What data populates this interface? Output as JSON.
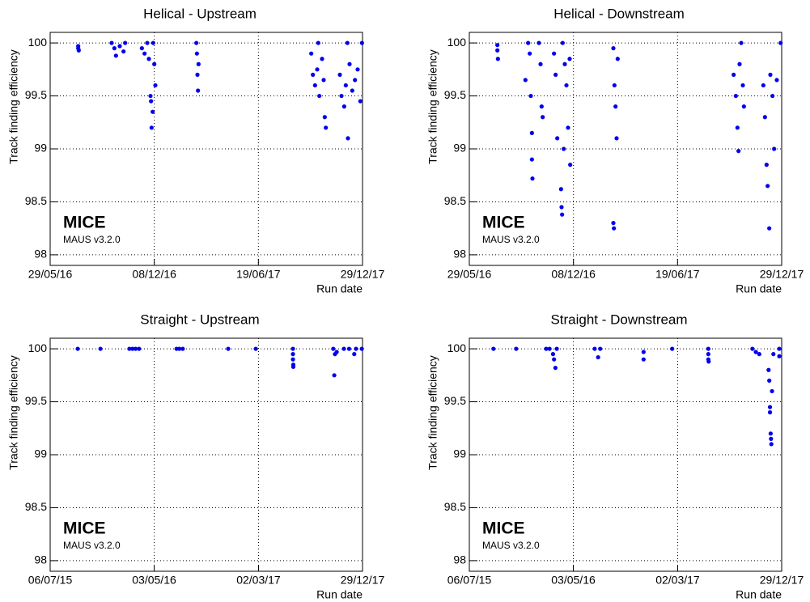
{
  "chart_data": [
    {
      "type": "scatter",
      "title": "Helical - Upstream",
      "ylabel": "Track finding efficiency",
      "xlabel": "Run date",
      "annotation": "MICE",
      "subannotation": "MAUS v3.2.0",
      "color": "#0000ee",
      "grid": true,
      "xlim": [
        "2016-05-29",
        "2017-12-29"
      ],
      "ylim": [
        97.9,
        100.1
      ],
      "xticks": [
        {
          "value": "2016-05-29",
          "label": "29/05/16"
        },
        {
          "value": "2016-12-08",
          "label": "08/12/16"
        },
        {
          "value": "2017-06-19",
          "label": "19/06/17"
        },
        {
          "value": "2017-12-29",
          "label": "29/12/17"
        }
      ],
      "yticks": [
        98,
        98.5,
        99,
        99.5,
        100
      ],
      "x": [
        "2016-07-20",
        "2016-07-20",
        "2016-07-21",
        "2016-09-20",
        "2016-09-25",
        "2016-09-28",
        "2016-10-05",
        "2016-10-12",
        "2016-10-15",
        "2016-11-15",
        "2016-11-20",
        "2016-11-25",
        "2016-11-28",
        "2016-12-01",
        "2016-12-02",
        "2016-12-03",
        "2016-12-05",
        "2016-12-08",
        "2016-12-10",
        "2016-12-06",
        "2017-02-25",
        "2017-02-26",
        "2017-02-27",
        "2017-02-28",
        "2017-02-24",
        "2017-09-25",
        "2017-09-28",
        "2017-10-02",
        "2017-10-06",
        "2017-10-10",
        "2017-10-15",
        "2017-10-20",
        "2017-10-22",
        "2017-10-08",
        "2017-10-18",
        "2017-11-17",
        "2017-11-20",
        "2017-11-25",
        "2017-11-28",
        "2017-12-02",
        "2017-12-05",
        "2017-12-10",
        "2017-12-15",
        "2017-12-20",
        "2017-12-25",
        "2017-12-28",
        "2017-12-01"
      ],
      "y": [
        99.95,
        99.97,
        99.93,
        100,
        99.95,
        99.88,
        99.97,
        99.92,
        100,
        99.95,
        99.9,
        100,
        99.85,
        99.5,
        99.45,
        99.2,
        99.35,
        99.8,
        99.6,
        100,
        99.9,
        99.7,
        99.55,
        99.8,
        100,
        99.9,
        99.7,
        99.6,
        99.75,
        99.5,
        99.85,
        99.3,
        99.2,
        100,
        99.65,
        99.7,
        99.5,
        99.4,
        99.6,
        99.1,
        99.8,
        99.55,
        99.65,
        99.75,
        99.45,
        100,
        100
      ]
    },
    {
      "type": "scatter",
      "title": "Helical - Downstream",
      "ylabel": "Track finding efficiency",
      "xlabel": "Run date",
      "annotation": "MICE",
      "subannotation": "MAUS v3.2.0",
      "color": "#0000ee",
      "grid": true,
      "xlim": [
        "2016-05-29",
        "2017-12-29"
      ],
      "ylim": [
        97.9,
        100.1
      ],
      "xticks": [
        {
          "value": "2016-05-29",
          "label": "29/05/16"
        },
        {
          "value": "2016-12-08",
          "label": "08/12/16"
        },
        {
          "value": "2017-06-19",
          "label": "19/06/17"
        },
        {
          "value": "2017-12-29",
          "label": "29/12/17"
        }
      ],
      "yticks": [
        98,
        98.5,
        99,
        99.5,
        100
      ],
      "x": [
        "2016-07-20",
        "2016-07-20",
        "2016-07-21",
        "2016-09-10",
        "2016-09-15",
        "2016-09-18",
        "2016-09-20",
        "2016-09-22",
        "2016-09-22",
        "2016-09-23",
        "2016-10-05",
        "2016-10-08",
        "2016-10-10",
        "2016-10-12",
        "2016-11-02",
        "2016-11-05",
        "2016-11-08",
        "2016-11-15",
        "2016-11-16",
        "2016-11-17",
        "2016-11-20",
        "2016-11-25",
        "2016-11-28",
        "2016-12-02",
        "2016-12-01",
        "2016-11-18",
        "2016-11-22",
        "2017-02-20",
        "2017-02-22",
        "2017-02-24",
        "2017-02-20",
        "2017-02-21",
        "2017-02-26",
        "2017-02-28",
        "2017-10-01",
        "2017-10-05",
        "2017-10-08",
        "2017-10-10",
        "2017-10-12",
        "2017-10-15",
        "2017-10-18",
        "2017-10-20",
        "2017-11-25",
        "2017-11-28",
        "2017-12-01",
        "2017-12-03",
        "2017-12-06",
        "2017-12-08",
        "2017-12-12",
        "2017-12-15",
        "2017-12-20",
        "2017-12-27"
      ],
      "y": [
        99.98,
        99.93,
        99.85,
        99.65,
        100,
        99.9,
        99.5,
        99.15,
        98.9,
        98.72,
        100,
        99.8,
        99.4,
        99.3,
        99.9,
        99.7,
        99.1,
        98.62,
        98.45,
        98.38,
        99.0,
        99.6,
        99.2,
        98.85,
        99.85,
        100,
        99.8,
        99.95,
        99.6,
        99.4,
        98.3,
        98.25,
        99.1,
        99.85,
        99.7,
        99.5,
        99.2,
        98.98,
        99.8,
        100,
        99.6,
        99.4,
        99.6,
        99.3,
        98.85,
        98.65,
        98.25,
        99.7,
        99.5,
        99.0,
        99.65,
        100
      ]
    },
    {
      "type": "scatter",
      "title": "Straight - Upstream",
      "ylabel": "Track finding efficiency",
      "xlabel": "Run date",
      "annotation": "MICE",
      "subannotation": "MAUS v3.2.0",
      "color": "#0000ee",
      "grid": true,
      "xlim": [
        "2015-07-06",
        "2017-12-29"
      ],
      "ylim": [
        97.9,
        100.1
      ],
      "xticks": [
        {
          "value": "2015-07-06",
          "label": "06/07/15"
        },
        {
          "value": "2016-05-03",
          "label": "03/05/16"
        },
        {
          "value": "2017-03-02",
          "label": "02/03/17"
        },
        {
          "value": "2017-12-29",
          "label": "29/12/17"
        }
      ],
      "yticks": [
        98,
        98.5,
        99,
        99.5,
        100
      ],
      "x": [
        "2015-09-24",
        "2015-11-29",
        "2016-02-21",
        "2016-03-01",
        "2016-03-10",
        "2016-03-20",
        "2016-07-07",
        "2016-07-15",
        "2016-07-25",
        "2016-12-04",
        "2017-02-22",
        "2017-06-10",
        "2017-06-10",
        "2017-06-10",
        "2017-06-11",
        "2017-06-11",
        "2017-10-05",
        "2017-10-10",
        "2017-10-08",
        "2017-10-15",
        "2017-11-05",
        "2017-11-20",
        "2017-12-05",
        "2017-12-10",
        "2017-12-27"
      ],
      "y": [
        100,
        100,
        100,
        100,
        100,
        100,
        100,
        100,
        100,
        100,
        100,
        100,
        99.95,
        99.9,
        99.85,
        99.83,
        100,
        99.95,
        99.75,
        99.97,
        100,
        100,
        99.95,
        100,
        100
      ]
    },
    {
      "type": "scatter",
      "title": "Straight - Downstream",
      "ylabel": "Track finding efficiency",
      "xlabel": "Run date",
      "annotation": "MICE",
      "subannotation": "MAUS v3.2.0",
      "color": "#0000ee",
      "grid": true,
      "xlim": [
        "2015-07-06",
        "2017-12-29"
      ],
      "ylim": [
        97.9,
        100.1
      ],
      "xticks": [
        {
          "value": "2015-07-06",
          "label": "06/07/15"
        },
        {
          "value": "2016-05-03",
          "label": "03/05/16"
        },
        {
          "value": "2017-03-02",
          "label": "02/03/17"
        },
        {
          "value": "2017-12-29",
          "label": "29/12/17"
        }
      ],
      "yticks": [
        98,
        98.5,
        99,
        99.5,
        100
      ],
      "x": [
        "2015-09-14",
        "2015-11-19",
        "2016-02-14",
        "2016-02-24",
        "2016-03-05",
        "2016-03-08",
        "2016-03-12",
        "2016-03-16",
        "2016-07-04",
        "2016-07-14",
        "2016-07-20",
        "2016-11-23",
        "2016-11-23",
        "2017-02-14",
        "2017-05-30",
        "2017-05-30",
        "2017-05-30",
        "2017-05-31",
        "2017-10-05",
        "2017-10-15",
        "2017-10-25",
        "2017-11-21",
        "2017-11-23",
        "2017-11-25",
        "2017-11-25",
        "2017-11-27",
        "2017-11-28",
        "2017-11-29",
        "2017-12-01",
        "2017-12-05",
        "2017-12-22",
        "2017-12-22"
      ],
      "y": [
        100,
        100,
        100,
        100,
        99.95,
        99.9,
        99.82,
        100,
        100,
        99.92,
        100,
        99.9,
        99.97,
        100,
        100,
        99.95,
        99.9,
        99.88,
        100,
        99.97,
        99.95,
        99.8,
        99.7,
        99.45,
        99.4,
        99.2,
        99.15,
        99.1,
        99.6,
        99.95,
        99.93,
        100
      ]
    }
  ]
}
